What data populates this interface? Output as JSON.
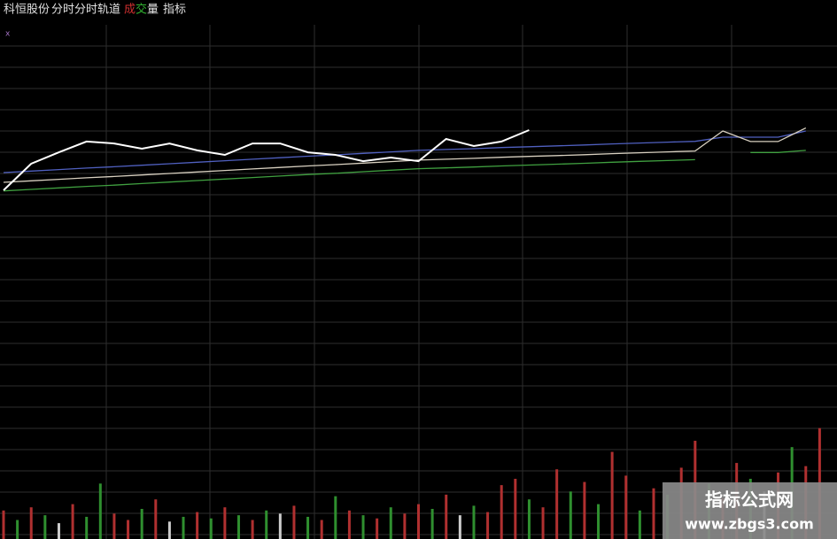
{
  "header": {
    "stock": "科恒股份",
    "tabs": [
      "分时",
      "分时轨道"
    ],
    "volume_label": [
      "成",
      "交",
      "量"
    ],
    "indicator": "指标",
    "marker": "x"
  },
  "watermark": {
    "title": "指标公式网",
    "url": "www.zbgs3.com"
  },
  "chart_data": [
    {
      "type": "line",
      "xlim": [
        0,
        240
      ],
      "ylim": [
        0,
        16
      ],
      "x": [
        0,
        8,
        16,
        24,
        32,
        40,
        48,
        56,
        64,
        72,
        80,
        88,
        96,
        104,
        112,
        120,
        128,
        136,
        144,
        152,
        160,
        168,
        176,
        184,
        192,
        200,
        208,
        216,
        224,
        232
      ],
      "series": [
        {
          "color": "#5060c0",
          "values": [
            9.23,
            9.3,
            9.37,
            9.44,
            9.5,
            9.57,
            9.64,
            9.71,
            9.78,
            9.85,
            9.92,
            9.99,
            10.05,
            10.12,
            10.19,
            10.26,
            10.3,
            10.34,
            10.39,
            10.43,
            10.47,
            10.51,
            10.56,
            10.6,
            10.64,
            10.68,
            10.87,
            10.87,
            10.87,
            11.16
          ]
        },
        {
          "color": "#d8d0c0",
          "values": [
            8.78,
            8.85,
            8.92,
            8.99,
            9.05,
            9.12,
            9.19,
            9.26,
            9.33,
            9.4,
            9.47,
            9.54,
            9.6,
            9.67,
            9.74,
            9.81,
            9.85,
            9.89,
            9.94,
            9.98,
            10.02,
            10.06,
            10.11,
            10.15,
            10.19,
            10.23,
            11.16,
            10.67,
            10.67,
            11.3
          ]
        },
        {
          "color": "#40a040",
          "values": [
            8.38,
            8.45,
            8.52,
            8.59,
            8.65,
            8.72,
            8.79,
            8.86,
            8.93,
            9.0,
            9.07,
            9.14,
            9.2,
            9.27,
            9.34,
            9.41,
            9.45,
            9.49,
            9.54,
            9.58,
            9.62,
            9.66,
            9.71,
            9.75,
            9.79,
            9.83,
            null,
            10.16,
            10.16,
            10.26
          ]
        },
        {
          "color": "#ffffff",
          "values": [
            8.41,
            9.64,
            10.17,
            10.67,
            10.58,
            10.34,
            10.58,
            10.26,
            10.05,
            10.58,
            10.58,
            10.17,
            10.05,
            9.76,
            9.93,
            9.76,
            10.79,
            10.46,
            10.67,
            11.2,
            null,
            null,
            null,
            null,
            null,
            null,
            null,
            null,
            null,
            null
          ]
        }
      ]
    },
    {
      "type": "bar",
      "xlim": [
        0,
        240
      ],
      "ylim": [
        0,
        100
      ],
      "x": [
        0,
        4,
        8,
        12,
        16,
        20,
        24,
        28,
        32,
        36,
        40,
        44,
        48,
        52,
        56,
        60,
        64,
        68,
        72,
        76,
        80,
        84,
        88,
        92,
        96,
        100,
        104,
        108,
        112,
        116,
        120,
        124,
        128,
        132,
        136,
        140,
        144,
        148,
        152,
        156,
        160,
        164,
        168,
        172,
        176,
        180,
        184,
        188,
        192,
        196,
        200,
        204,
        208,
        212,
        216,
        220,
        224,
        228,
        232,
        236
      ],
      "values": [
        18,
        12,
        20,
        15,
        10,
        22,
        14,
        35,
        16,
        12,
        19,
        25,
        11,
        14,
        17,
        13,
        20,
        15,
        12,
        18,
        16,
        21,
        14,
        12,
        27,
        18,
        15,
        13,
        20,
        16,
        22,
        19,
        28,
        15,
        21,
        17,
        34,
        38,
        25,
        20,
        44,
        30,
        36,
        22,
        55,
        40,
        18,
        32,
        28,
        45,
        62,
        35,
        26,
        48,
        38,
        30,
        42,
        58,
        46,
        70
      ],
      "colors": [
        "#b03030",
        "#2f8f2f",
        "#b03030",
        "#2f8f2f",
        "#cccccc",
        "#b03030",
        "#2f8f2f",
        "#2f8f2f",
        "#b03030",
        "#b03030",
        "#2f8f2f",
        "#b03030",
        "#cccccc",
        "#2f8f2f",
        "#b03030",
        "#2f8f2f",
        "#b03030",
        "#2f8f2f",
        "#b03030",
        "#2f8f2f",
        "#cccccc",
        "#b03030",
        "#2f8f2f",
        "#b03030",
        "#2f8f2f",
        "#b03030",
        "#2f8f2f",
        "#b03030",
        "#2f8f2f",
        "#b03030",
        "#b03030",
        "#2f8f2f",
        "#b03030",
        "#cccccc",
        "#2f8f2f",
        "#b03030",
        "#b03030",
        "#b03030",
        "#2f8f2f",
        "#b03030",
        "#b03030",
        "#2f8f2f",
        "#b03030",
        "#2f8f2f",
        "#b03030",
        "#b03030",
        "#2f8f2f",
        "#b03030",
        "#2f8f2f",
        "#b03030",
        "#b03030",
        "#2f8f2f",
        "#b03030",
        "#b03030",
        "#2f8f2f",
        "#cccccc",
        "#b03030",
        "#2f8f2f",
        "#b03030",
        "#b03030"
      ]
    }
  ]
}
